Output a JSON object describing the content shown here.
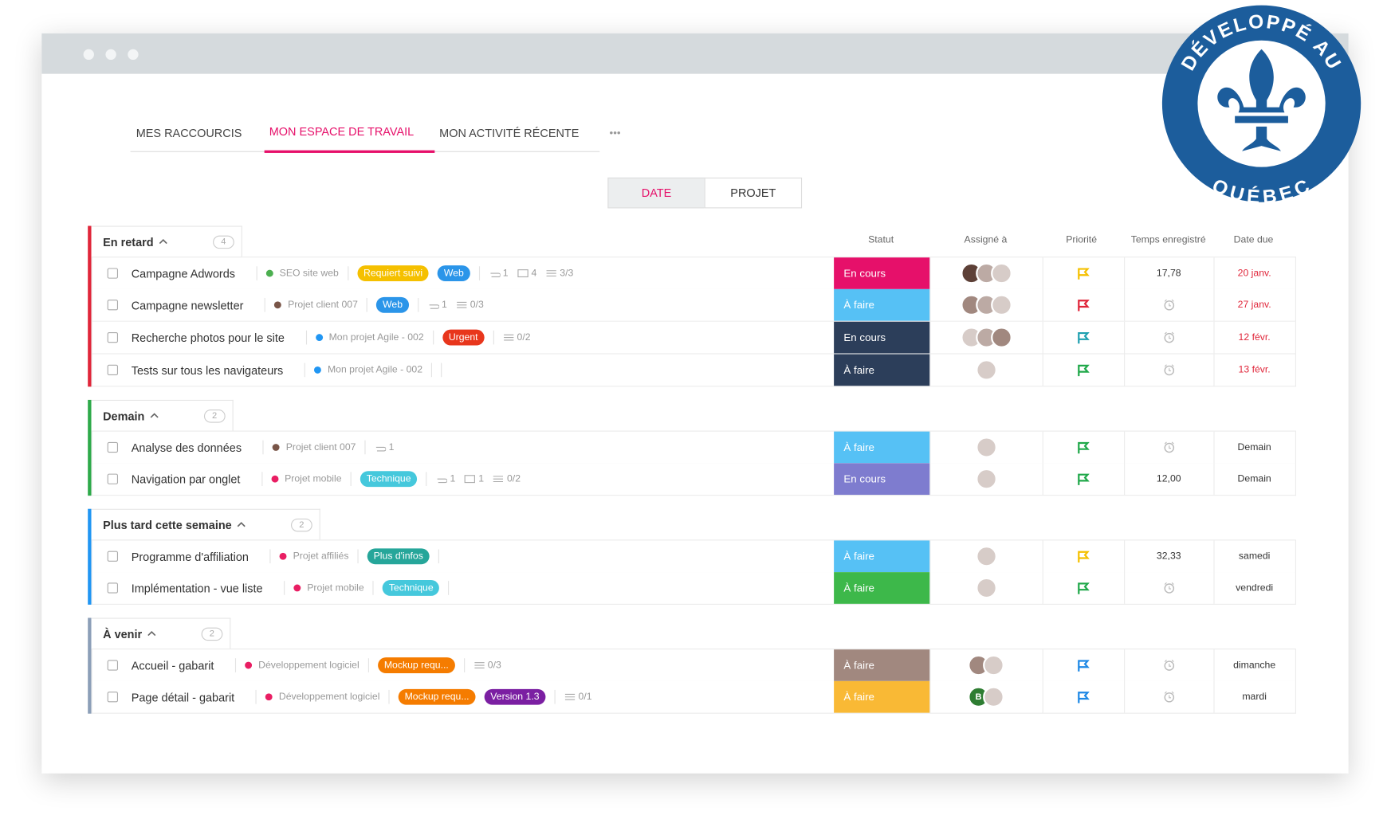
{
  "window": {
    "tabs": [
      "MES RACCOURCIS",
      "MON ESPACE DE TRAVAIL",
      "MON ACTIVITÉ RÉCENTE"
    ],
    "active_tab": 1,
    "more": "•••"
  },
  "badge": {
    "top": "DÉVELOPPÉ AU",
    "bottom": "QUÉBEC"
  },
  "toggle": {
    "options": [
      "DATE",
      "PROJET"
    ],
    "active": 0
  },
  "columns": [
    "Statut",
    "Assigné à",
    "Priorité",
    "Temps enregistré",
    "Date due"
  ],
  "groups": [
    {
      "title": "En retard",
      "count": "4",
      "color": "#e0263a",
      "tasks": [
        {
          "name": "Campagne Adwords",
          "project": "SEO site web",
          "project_color": "#4caf50",
          "tags": [
            {
              "label": "Requiert suivi",
              "color": "#f5c000"
            },
            {
              "label": "Web",
              "color": "#2b95e9"
            }
          ],
          "meta": {
            "attachments": "1",
            "comments": "4",
            "checklist": "3/3"
          },
          "status": "En cours",
          "status_color": "#e6106a",
          "assignees": [
            {
              "color": "#5d4037"
            },
            {
              "color": "#bcaaa4"
            },
            {
              "color": "#d7ccc8"
            }
          ],
          "priority_color": "#f5c000",
          "time": "17,78",
          "due": "20 janv.",
          "due_color": "#e0263a"
        },
        {
          "name": "Campagne newsletter",
          "project": "Projet client 007",
          "project_color": "#795548",
          "tags": [
            {
              "label": "Web",
              "color": "#2b95e9"
            }
          ],
          "meta": {
            "attachments": "1",
            "checklist": "0/3"
          },
          "status": "À faire",
          "status_color": "#56c1f5",
          "assignees": [
            {
              "color": "#a1887f"
            },
            {
              "color": "#bcaaa4"
            },
            {
              "color": "#d7ccc8"
            }
          ],
          "priority_color": "#e0263a",
          "due": "27 janv.",
          "due_color": "#e0263a"
        },
        {
          "name": "Recherche photos pour le site",
          "project": "Mon projet Agile - 002",
          "project_color": "#2196f3",
          "tags": [
            {
              "label": "Urgent",
              "color": "#e8361c"
            }
          ],
          "meta": {
            "checklist": "0/2"
          },
          "status": "En cours",
          "status_color": "#2c3e5a",
          "assignees": [
            {
              "color": "#d7ccc8"
            },
            {
              "color": "#bcaaa4"
            },
            {
              "color": "#a1887f"
            }
          ],
          "priority_color": "#1fa0b0",
          "due": "12 févr.",
          "due_color": "#e0263a"
        },
        {
          "name": "Tests sur tous les navigateurs",
          "project": "Mon projet Agile - 002",
          "project_color": "#2196f3",
          "tags": [],
          "meta": {},
          "status": "À faire",
          "status_color": "#2c3e5a",
          "assignees": [
            {
              "color": "#d7ccc8"
            }
          ],
          "priority_color": "#20a84a",
          "due": "13 févr.",
          "due_color": "#e0263a"
        }
      ]
    },
    {
      "title": "Demain",
      "count": "2",
      "color": "#2eaa4a",
      "tasks": [
        {
          "name": "Analyse des données",
          "project": "Projet client 007",
          "project_color": "#795548",
          "tags": [],
          "meta": {
            "attachments": "1"
          },
          "status": "À faire",
          "status_color": "#56c1f5",
          "assignees": [
            {
              "color": "#d7ccc8"
            }
          ],
          "priority_color": "#20a84a",
          "due": "Demain",
          "due_color": "#333333"
        },
        {
          "name": "Navigation par onglet",
          "project": "Projet mobile",
          "project_color": "#e91e63",
          "tags": [
            {
              "label": "Technique",
              "color": "#45c8dc"
            }
          ],
          "meta": {
            "attachments": "1",
            "comments": "1",
            "checklist": "0/2"
          },
          "status": "En cours",
          "status_color": "#7e7ccf",
          "assignees": [
            {
              "color": "#d7ccc8"
            }
          ],
          "priority_color": "#20a84a",
          "time": "12,00",
          "due": "Demain",
          "due_color": "#333333"
        }
      ]
    },
    {
      "title": "Plus tard cette semaine",
      "count": "2",
      "color": "#2196f3",
      "tasks": [
        {
          "name": "Programme d'affiliation",
          "project": "Projet affiliés",
          "project_color": "#e91e63",
          "tags": [
            {
              "label": "Plus d'infos",
              "color": "#26a69a"
            }
          ],
          "meta": {},
          "status": "À faire",
          "status_color": "#56c1f5",
          "assignees": [
            {
              "color": "#d7ccc8"
            }
          ],
          "priority_color": "#f5c000",
          "time": "32,33",
          "due": "samedi",
          "due_color": "#333333"
        },
        {
          "name": "Implémentation - vue liste",
          "project": "Projet mobile",
          "project_color": "#e91e63",
          "tags": [
            {
              "label": "Technique",
              "color": "#45c8dc"
            }
          ],
          "meta": {},
          "status": "À faire",
          "status_color": "#3db84a",
          "assignees": [
            {
              "color": "#d7ccc8"
            }
          ],
          "priority_color": "#20a84a",
          "due": "vendredi",
          "due_color": "#333333"
        }
      ]
    },
    {
      "title": "À venir",
      "count": "2",
      "color": "#8c9fb8",
      "tasks": [
        {
          "name": "Accueil - gabarit",
          "project": "Développement logiciel",
          "project_color": "#e91e63",
          "tags": [
            {
              "label": "Mockup requ...",
              "color": "#f57c00"
            }
          ],
          "meta": {
            "checklist": "0/3"
          },
          "status": "À faire",
          "status_color": "#a1887f",
          "assignees": [
            {
              "color": "#a1887f"
            },
            {
              "color": "#d7ccc8"
            }
          ],
          "priority_color": "#1e88e5",
          "due": "dimanche",
          "due_color": "#333333"
        },
        {
          "name": "Page détail - gabarit",
          "project": "Développement logiciel",
          "project_color": "#e91e63",
          "tags": [
            {
              "label": "Mockup requ...",
              "color": "#f57c00"
            },
            {
              "label": "Version 1.3",
              "color": "#7b1fa2"
            }
          ],
          "meta": {
            "checklist": "0/1"
          },
          "status": "À faire",
          "status_color": "#f9b935",
          "assignees": [
            {
              "color": "#2e7d32",
              "initial": "B"
            },
            {
              "color": "#d7ccc8"
            }
          ],
          "priority_color": "#1e88e5",
          "due": "mardi",
          "due_color": "#333333"
        }
      ]
    }
  ]
}
